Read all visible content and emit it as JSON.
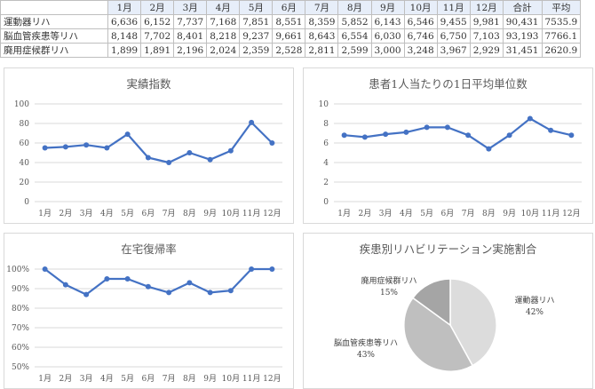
{
  "table": {
    "headers": [
      "",
      "1月",
      "2月",
      "3月",
      "4月",
      "5月",
      "6月",
      "7月",
      "8月",
      "9月",
      "10月",
      "11月",
      "12月",
      "合計",
      "平均"
    ],
    "rows": [
      {
        "label": "運動器リハ",
        "cells": [
          "6,636",
          "6,152",
          "7,737",
          "7,168",
          "7,851",
          "8,551",
          "8,359",
          "5,852",
          "6,143",
          "6,546",
          "9,455",
          "9,981",
          "90,431",
          "7535.9"
        ]
      },
      {
        "label": "脳血管疾患等リハ",
        "cells": [
          "8,148",
          "7,702",
          "8,401",
          "8,218",
          "9,237",
          "9,661",
          "8,643",
          "6,554",
          "6,030",
          "6,746",
          "6,750",
          "7,103",
          "93,193",
          "7766.1"
        ]
      },
      {
        "label": "廃用症候群リハ",
        "cells": [
          "1,899",
          "1,891",
          "2,196",
          "2,024",
          "2,359",
          "2,528",
          "2,811",
          "2,599",
          "3,000",
          "3,248",
          "3,967",
          "2,929",
          "31,451",
          "2620.9"
        ]
      }
    ]
  },
  "chart_data": [
    {
      "type": "line",
      "title": "実績指数",
      "categories": [
        "1月",
        "2月",
        "3月",
        "4月",
        "5月",
        "6月",
        "7月",
        "8月",
        "9月",
        "10月",
        "11月",
        "12月"
      ],
      "values": [
        55,
        56,
        58,
        55,
        69,
        45,
        40,
        50,
        43,
        52,
        81,
        60
      ],
      "ylim": [
        0,
        100
      ],
      "yticks": [
        "0",
        "20",
        "40",
        "60",
        "80",
        "100"
      ],
      "color": "#4472c4",
      "grid": true
    },
    {
      "type": "line",
      "title": "患者1人当たりの1日平均単位数",
      "categories": [
        "1月",
        "2月",
        "3月",
        "4月",
        "5月",
        "6月",
        "7月",
        "8月",
        "9月",
        "10月",
        "11月",
        "12月"
      ],
      "values": [
        6.8,
        6.6,
        6.9,
        7.1,
        7.6,
        7.6,
        6.8,
        5.4,
        6.8,
        8.5,
        7.3,
        6.8
      ],
      "ylim": [
        0,
        10
      ],
      "yticks": [
        "0",
        "2",
        "4",
        "6",
        "8",
        "10"
      ],
      "color": "#4472c4",
      "grid": true
    },
    {
      "type": "line",
      "title": "在宅復帰率",
      "categories": [
        "1月",
        "2月",
        "3月",
        "4月",
        "5月",
        "6月",
        "7月",
        "8月",
        "9月",
        "10月",
        "11月",
        "12月"
      ],
      "values": [
        100,
        92,
        87,
        95,
        95,
        91,
        88,
        93,
        88,
        89,
        100,
        100
      ],
      "ylim": [
        50,
        100
      ],
      "yticks": [
        "50%",
        "60%",
        "70%",
        "80%",
        "90%",
        "100%"
      ],
      "color": "#4472c4",
      "grid": true
    },
    {
      "type": "pie",
      "title": "疾患別リハビリテーション実施割合",
      "slices": [
        {
          "name": "運動器リハ",
          "value": 42,
          "label": "42%",
          "color": "#dcdcdc"
        },
        {
          "name": "脳血管疾患等リハ",
          "value": 43,
          "label": "43%",
          "color": "#bfbfbf"
        },
        {
          "name": "廃用症候群リハ",
          "value": 15,
          "label": "15%",
          "color": "#a5a5a5"
        }
      ]
    }
  ]
}
